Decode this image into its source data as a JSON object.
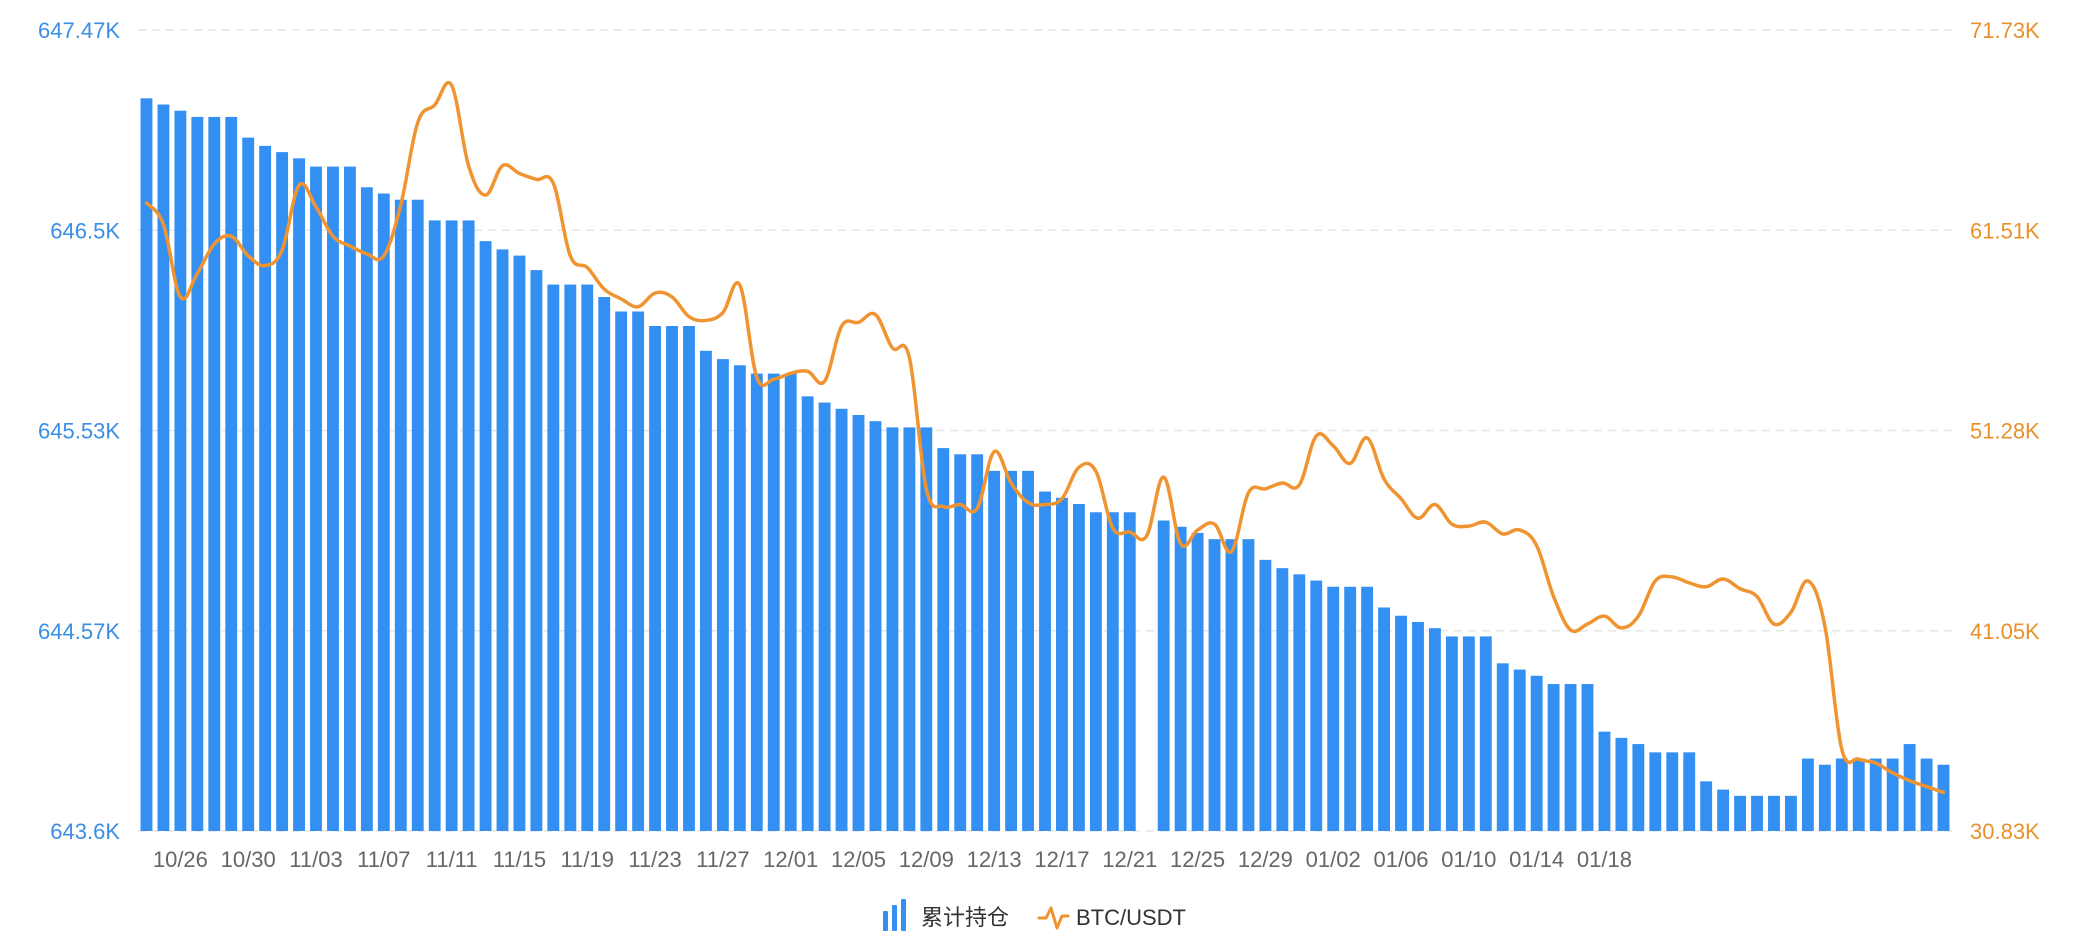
{
  "colors": {
    "bar": "#3390f2",
    "line": "#ef9431",
    "left_axis_text": "#3a8ee6",
    "right_axis_text": "#e8912a",
    "grid": "#e6e6e6"
  },
  "legend": {
    "items": [
      {
        "label": "累计持仓",
        "icon": "bar-series-icon"
      },
      {
        "label": "BTC/USDT",
        "icon": "line-series-icon"
      }
    ]
  },
  "chart_data": {
    "type": "bar",
    "grid": true,
    "legend_position": "bottom-center",
    "x_start": "10/24",
    "x_end": "01/23",
    "x_tick_labels": [
      "10/26",
      "10/30",
      "11/03",
      "11/07",
      "11/11",
      "11/15",
      "11/19",
      "11/23",
      "11/27",
      "12/01",
      "12/05",
      "12/09",
      "12/13",
      "12/17",
      "12/21",
      "12/25",
      "12/29",
      "01/02",
      "01/06",
      "01/10",
      "01/14",
      "01/18"
    ],
    "left_axis": {
      "ticks": [
        "643.6K",
        "644.57K",
        "645.53K",
        "646.5K",
        "647.47K"
      ],
      "min": 643.6,
      "max": 647.47
    },
    "right_axis": {
      "ticks": [
        "30.83K",
        "41.05K",
        "51.28K",
        "61.51K",
        "71.73K"
      ],
      "min": 30.83,
      "max": 71.73
    },
    "series": [
      {
        "name": "累计持仓",
        "type": "bar",
        "axis": "left",
        "unit": "K",
        "values": [
          647.14,
          647.11,
          647.08,
          647.05,
          647.05,
          647.05,
          646.95,
          646.91,
          646.88,
          646.85,
          646.81,
          646.81,
          646.81,
          646.71,
          646.68,
          646.65,
          646.65,
          646.55,
          646.55,
          646.55,
          646.45,
          646.41,
          646.38,
          646.31,
          646.24,
          646.24,
          646.24,
          646.18,
          646.11,
          646.11,
          646.04,
          646.04,
          646.04,
          645.92,
          645.88,
          645.85,
          645.81,
          645.81,
          645.81,
          645.7,
          645.67,
          645.64,
          645.61,
          645.58,
          645.55,
          645.55,
          645.55,
          645.45,
          645.42,
          645.42,
          645.34,
          645.34,
          645.34,
          645.24,
          645.21,
          645.18,
          645.14,
          645.14,
          645.14,
          null,
          645.1,
          645.07,
          645.04,
          645.01,
          645.01,
          645.01,
          644.91,
          644.87,
          644.84,
          644.81,
          644.78,
          644.78,
          644.78,
          644.68,
          644.64,
          644.61,
          644.58,
          644.54,
          644.54,
          644.54,
          644.41,
          644.38,
          644.35,
          644.31,
          644.31,
          644.31,
          644.08,
          644.05,
          644.02,
          643.98,
          643.98,
          643.98,
          643.84,
          643.8,
          643.77,
          643.77,
          643.77,
          643.77,
          643.95,
          643.92,
          643.95,
          643.95,
          643.95,
          643.95,
          644.02,
          643.95,
          643.92
        ]
      },
      {
        "name": "BTC/USDT",
        "type": "line",
        "axis": "right",
        "unit": "K",
        "values": [
          62.9,
          61.8,
          58.1,
          59.3,
          60.8,
          61.2,
          60.2,
          59.7,
          60.5,
          63.8,
          62.7,
          61.2,
          60.7,
          60.3,
          60.2,
          62.8,
          67.0,
          67.9,
          68.9,
          64.8,
          63.3,
          64.8,
          64.4,
          64.1,
          63.9,
          60.2,
          59.6,
          58.5,
          58.0,
          57.6,
          58.3,
          58.1,
          57.1,
          56.9,
          57.3,
          58.7,
          54.0,
          53.9,
          54.2,
          54.3,
          53.8,
          56.6,
          56.8,
          57.2,
          55.5,
          55.0,
          48.3,
          47.4,
          47.5,
          47.3,
          50.2,
          48.6,
          47.6,
          47.5,
          47.8,
          49.4,
          49.2,
          46.3,
          46.1,
          45.9,
          48.9,
          45.5,
          46.2,
          46.5,
          45.1,
          48.1,
          48.3,
          48.6,
          48.5,
          51.0,
          50.5,
          49.6,
          50.9,
          48.8,
          47.8,
          46.8,
          47.5,
          46.5,
          46.4,
          46.6,
          46.0,
          46.2,
          45.4,
          42.8,
          41.1,
          41.4,
          41.8,
          41.2,
          41.8,
          43.6,
          43.8,
          43.5,
          43.3,
          43.7,
          43.2,
          42.8,
          41.4,
          42.0,
          43.6,
          41.3,
          35.0,
          34.5,
          34.3,
          33.8,
          33.4,
          33.1,
          32.8
        ]
      }
    ]
  }
}
